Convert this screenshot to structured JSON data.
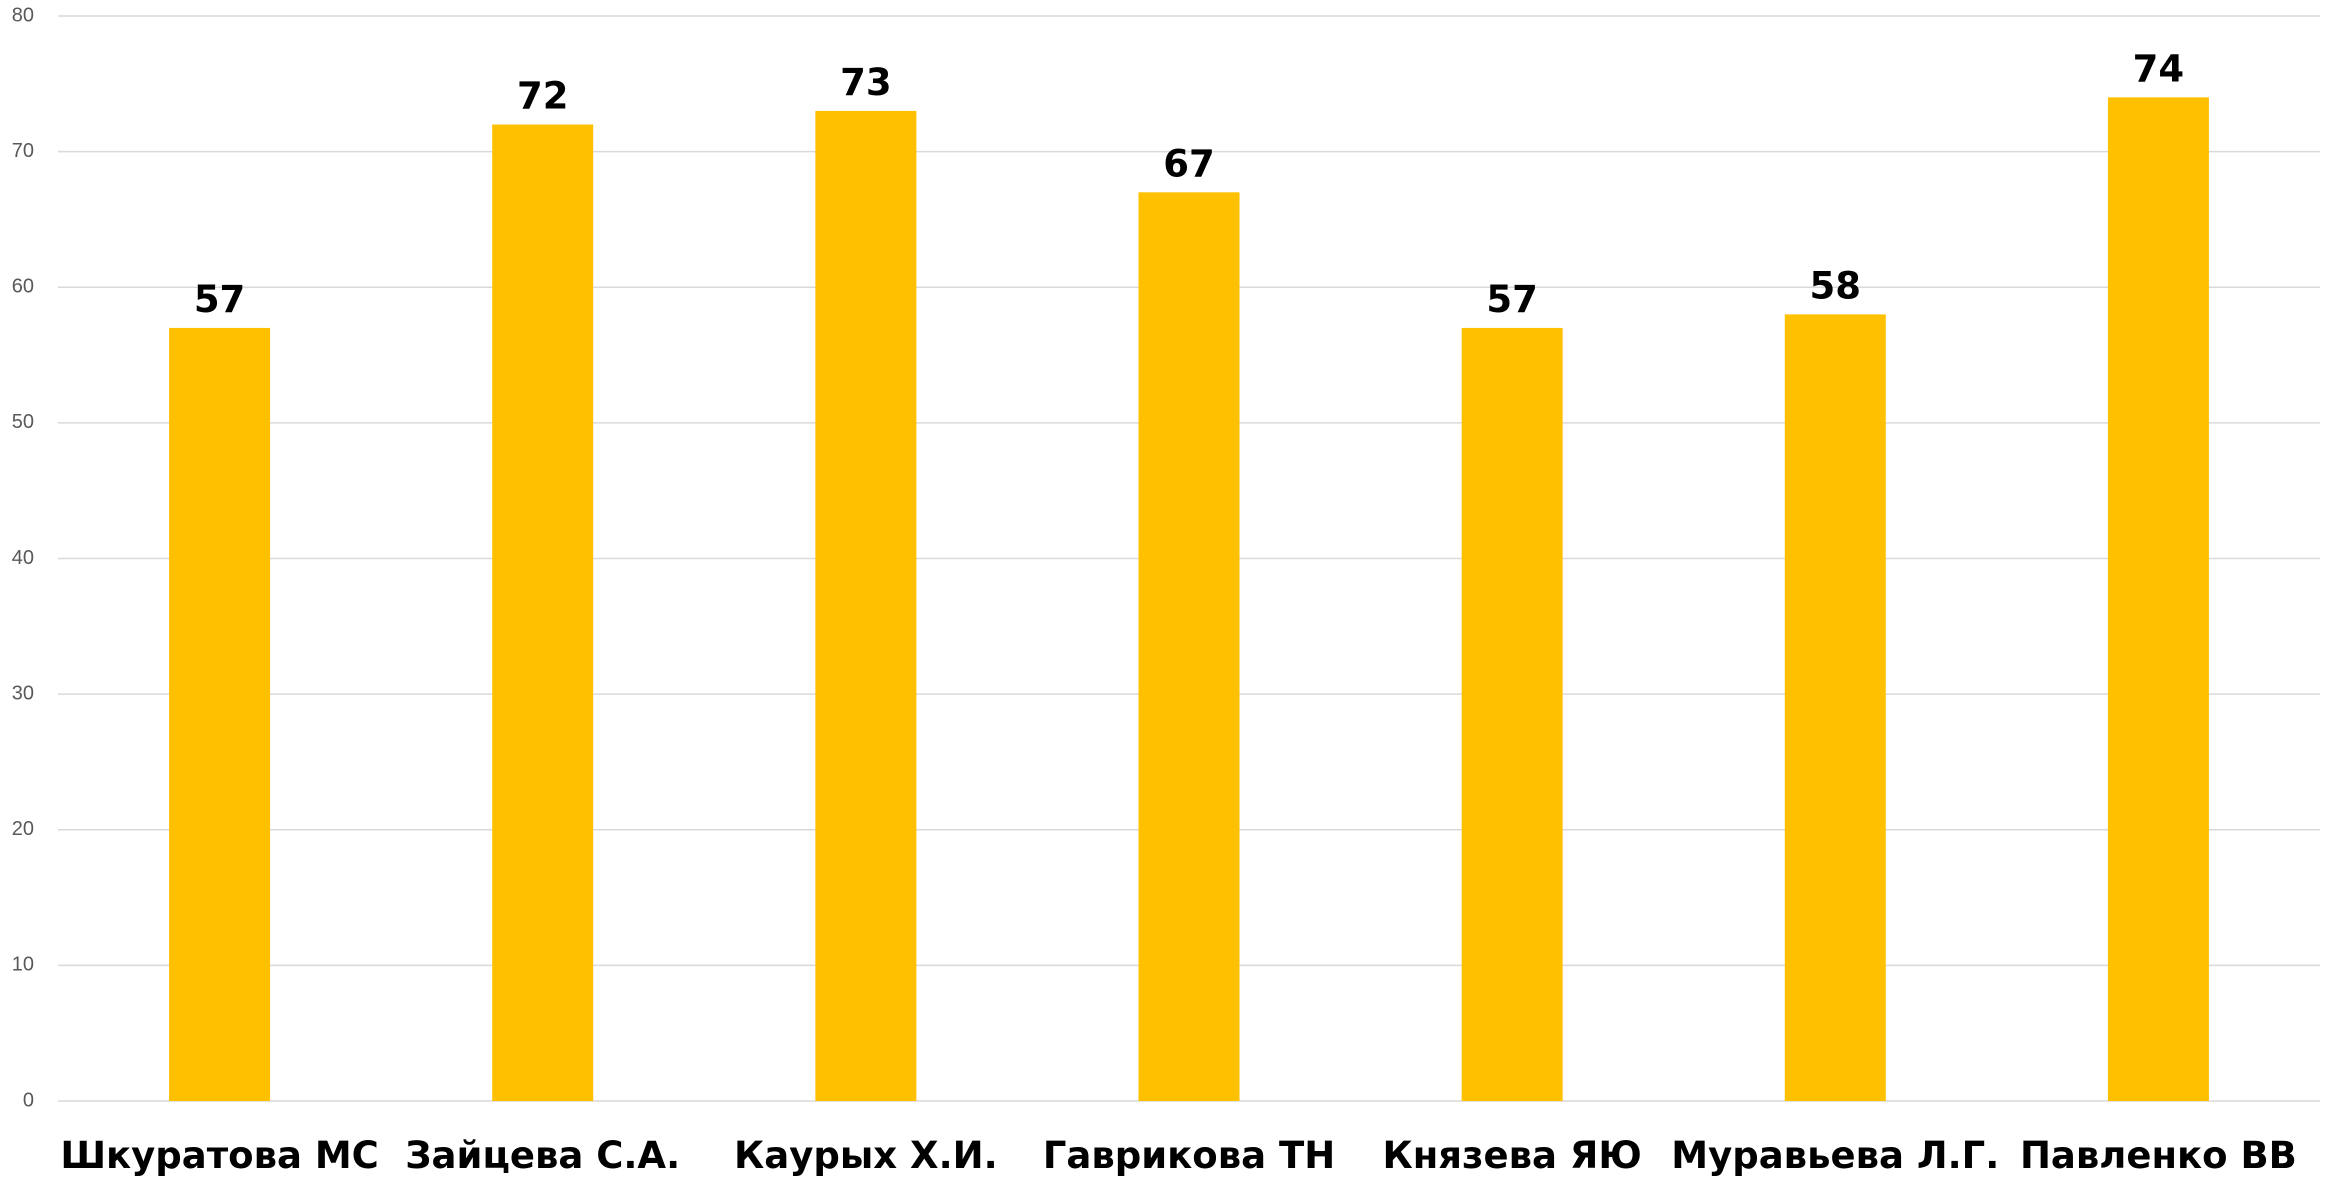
{
  "chart_data": {
    "type": "bar",
    "categories": [
      "Шкуратова МС",
      "Зайцева С.А.",
      "Каурых Х.И.",
      "Гаврикова ТН",
      "Князева ЯЮ",
      "Муравьева Л.Г.",
      "Павленко ВВ"
    ],
    "values": [
      57,
      72,
      73,
      67,
      57,
      58,
      74
    ],
    "data_labels": [
      "57",
      "72",
      "73",
      "67",
      "57",
      "58",
      "74"
    ],
    "y_ticks": [
      "0",
      "10",
      "20",
      "30",
      "40",
      "50",
      "60",
      "70",
      "80"
    ],
    "ylim": [
      0,
      80
    ],
    "grid": true,
    "legend": "none",
    "bar_color": "#FFC000"
  }
}
